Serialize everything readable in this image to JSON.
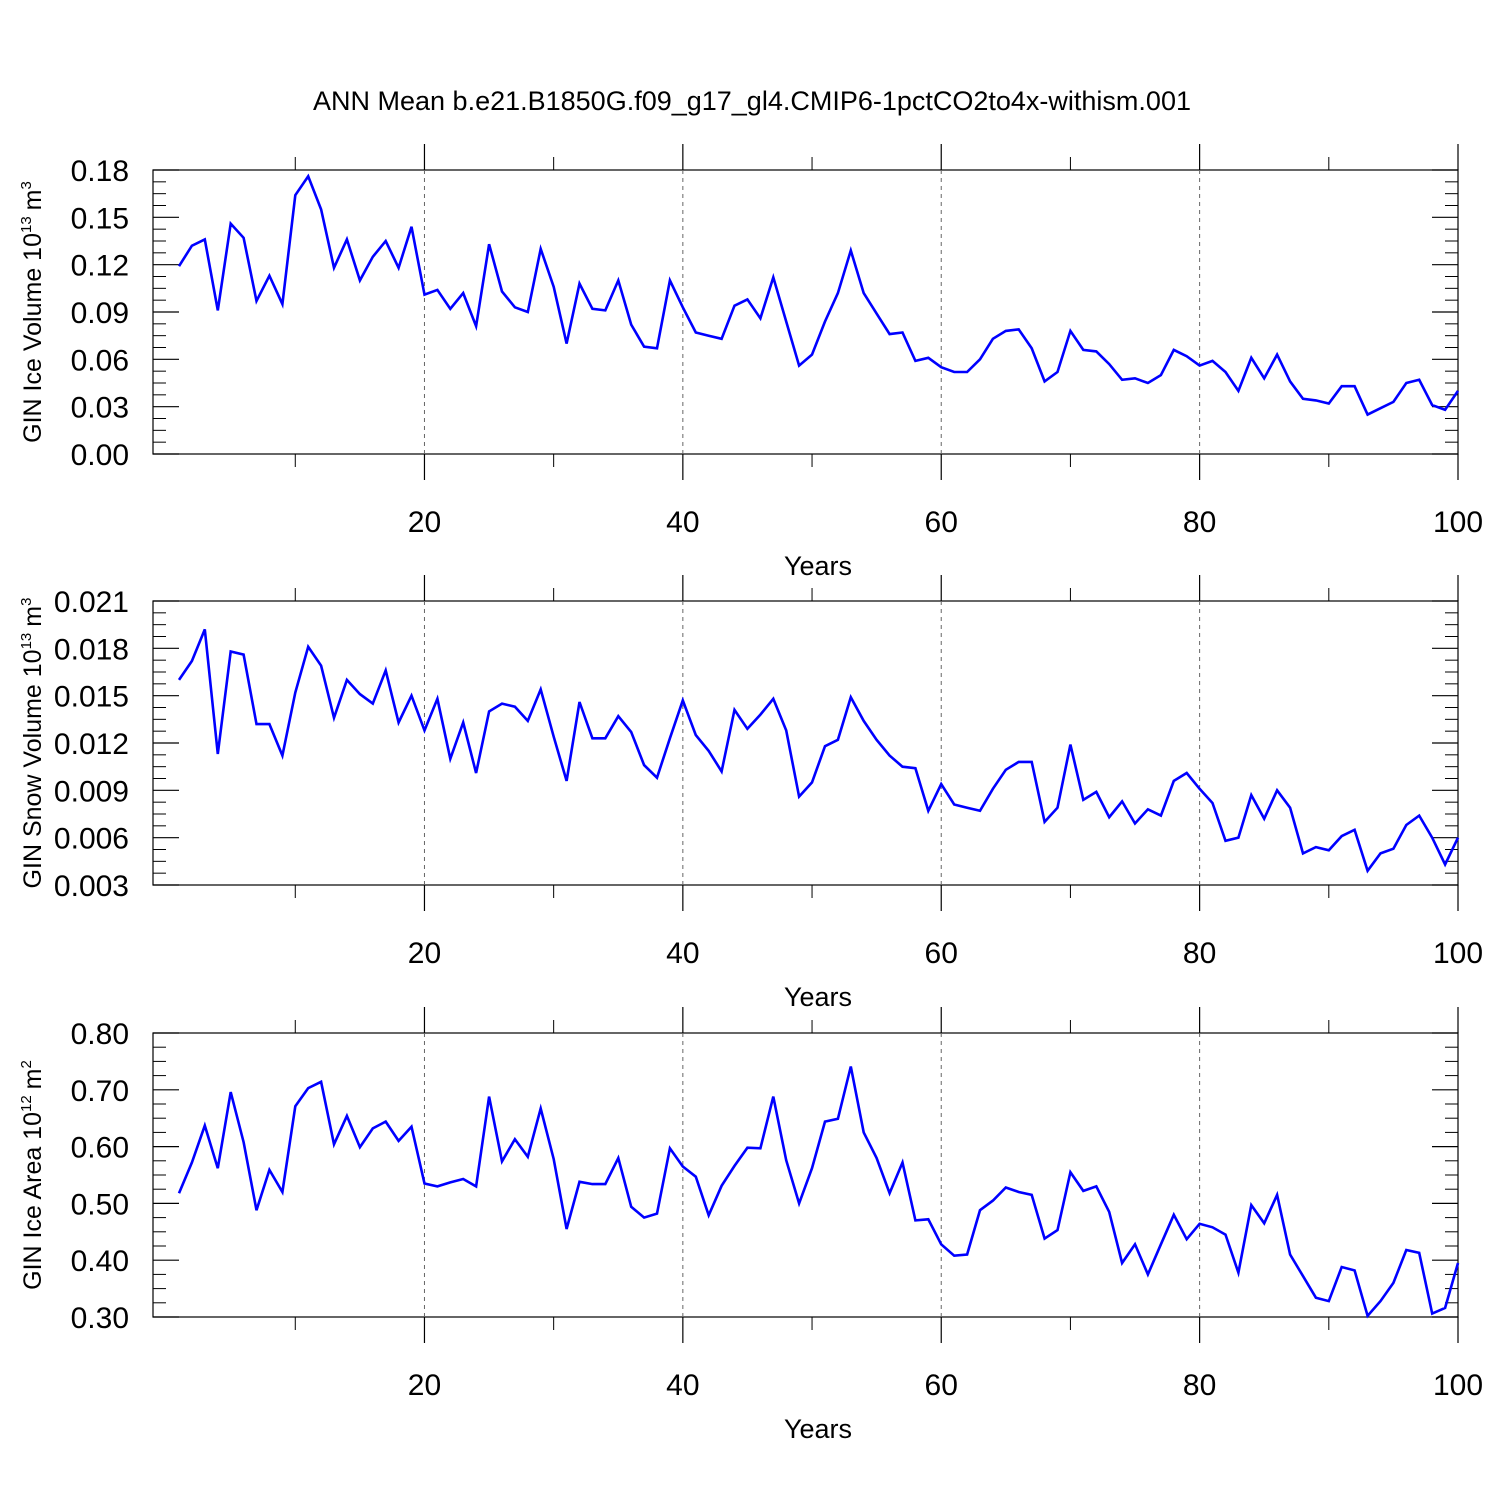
{
  "title": "ANN Mean b.e21.B1850G.f09_g17_gl4.CMIP6-1pctCO2to4x-withism.001",
  "colors": {
    "line": "#0000FF",
    "axis": "#000000",
    "grid": "#666666"
  },
  "chart_data": [
    {
      "type": "line",
      "xlabel": "Years",
      "ylabel": "GIN Ice Volume 10",
      "ylabel_exp": "13",
      "ylabel_unit": "m",
      "ylabel_unit_exp": "3",
      "xlim": [
        1,
        100
      ],
      "ylim": [
        0.0,
        0.18
      ],
      "xticks": [
        "20",
        "40",
        "60",
        "80",
        "100"
      ],
      "yticks": [
        "0.00",
        "0.03",
        "0.06",
        "0.09",
        "0.12",
        "0.15",
        "0.18"
      ],
      "grid_x": true,
      "series": [
        {
          "x": [
            1,
            2,
            3,
            4,
            5,
            6,
            7,
            8,
            9,
            10,
            11,
            12,
            13,
            14,
            15,
            16,
            17,
            18,
            19,
            20,
            21,
            22,
            23,
            24,
            25,
            26,
            27,
            28,
            29,
            30,
            31,
            32,
            33,
            34,
            35,
            36,
            37,
            38,
            39,
            40,
            41,
            42,
            43,
            44,
            45,
            46,
            47,
            48,
            49,
            50,
            51,
            52,
            53,
            54,
            55,
            56,
            57,
            58,
            59,
            60,
            61,
            62,
            63,
            64,
            65,
            66,
            67,
            68,
            69,
            70,
            71,
            72,
            73,
            74,
            75,
            76,
            77,
            78,
            79,
            80,
            81,
            82,
            83,
            84,
            85,
            86,
            87,
            88,
            89,
            90,
            91,
            92,
            93,
            94,
            95,
            96,
            97,
            98,
            99,
            100
          ],
          "values": [
            0.119,
            0.132,
            0.136,
            0.091,
            0.146,
            0.137,
            0.097,
            0.113,
            0.095,
            0.164,
            0.176,
            0.155,
            0.118,
            0.136,
            0.11,
            0.125,
            0.135,
            0.118,
            0.144,
            0.101,
            0.104,
            0.092,
            0.102,
            0.081,
            0.133,
            0.103,
            0.093,
            0.09,
            0.13,
            0.106,
            0.07,
            0.108,
            0.092,
            0.091,
            0.11,
            0.082,
            0.068,
            0.067,
            0.11,
            0.093,
            0.077,
            0.075,
            0.073,
            0.094,
            0.098,
            0.086,
            0.112,
            0.084,
            0.056,
            0.063,
            0.084,
            0.102,
            0.129,
            0.102,
            0.089,
            0.076,
            0.077,
            0.059,
            0.061,
            0.055,
            0.052,
            0.052,
            0.06,
            0.073,
            0.078,
            0.079,
            0.067,
            0.046,
            0.052,
            0.078,
            0.066,
            0.065,
            0.057,
            0.047,
            0.048,
            0.045,
            0.05,
            0.066,
            0.062,
            0.056,
            0.059,
            0.052,
            0.04,
            0.061,
            0.048,
            0.063,
            0.046,
            0.035,
            0.034,
            0.032,
            0.043,
            0.043,
            0.025,
            0.029,
            0.033,
            0.045,
            0.047,
            0.031,
            0.028,
            0.04
          ]
        }
      ]
    },
    {
      "type": "line",
      "xlabel": "Years",
      "ylabel": "GIN Snow Volume 10",
      "ylabel_exp": "13",
      "ylabel_unit": "m",
      "ylabel_unit_exp": "3",
      "xlim": [
        1,
        100
      ],
      "ylim": [
        0.003,
        0.021
      ],
      "xticks": [
        "20",
        "40",
        "60",
        "80",
        "100"
      ],
      "yticks": [
        "0.003",
        "0.006",
        "0.009",
        "0.012",
        "0.015",
        "0.018",
        "0.021"
      ],
      "grid_x": true,
      "series": [
        {
          "x": [
            1,
            2,
            3,
            4,
            5,
            6,
            7,
            8,
            9,
            10,
            11,
            12,
            13,
            14,
            15,
            16,
            17,
            18,
            19,
            20,
            21,
            22,
            23,
            24,
            25,
            26,
            27,
            28,
            29,
            30,
            31,
            32,
            33,
            34,
            35,
            36,
            37,
            38,
            39,
            40,
            41,
            42,
            43,
            44,
            45,
            46,
            47,
            48,
            49,
            50,
            51,
            52,
            53,
            54,
            55,
            56,
            57,
            58,
            59,
            60,
            61,
            62,
            63,
            64,
            65,
            66,
            67,
            68,
            69,
            70,
            71,
            72,
            73,
            74,
            75,
            76,
            77,
            78,
            79,
            80,
            81,
            82,
            83,
            84,
            85,
            86,
            87,
            88,
            89,
            90,
            91,
            92,
            93,
            94,
            95,
            96,
            97,
            98,
            99,
            100
          ],
          "values": [
            0.016,
            0.0172,
            0.0192,
            0.0113,
            0.0178,
            0.0176,
            0.0132,
            0.0132,
            0.0112,
            0.0152,
            0.0181,
            0.0169,
            0.0136,
            0.016,
            0.0151,
            0.0145,
            0.0166,
            0.0133,
            0.015,
            0.0128,
            0.0148,
            0.011,
            0.0133,
            0.0101,
            0.014,
            0.0145,
            0.0143,
            0.0134,
            0.0154,
            0.0124,
            0.0096,
            0.0146,
            0.0123,
            0.0123,
            0.0137,
            0.0127,
            0.0106,
            0.0098,
            0.0123,
            0.0147,
            0.0125,
            0.0115,
            0.0102,
            0.0141,
            0.0129,
            0.0138,
            0.0148,
            0.0128,
            0.0086,
            0.0095,
            0.0118,
            0.0122,
            0.0149,
            0.0134,
            0.0122,
            0.0112,
            0.0105,
            0.0104,
            0.0077,
            0.0094,
            0.0081,
            0.0079,
            0.0077,
            0.0091,
            0.0103,
            0.0108,
            0.0108,
            0.007,
            0.0079,
            0.0119,
            0.0084,
            0.0089,
            0.0073,
            0.0083,
            0.0069,
            0.0078,
            0.0074,
            0.0096,
            0.0101,
            0.0091,
            0.0082,
            0.0058,
            0.006,
            0.0087,
            0.0072,
            0.009,
            0.0079,
            0.005,
            0.0054,
            0.0052,
            0.0061,
            0.0065,
            0.0039,
            0.005,
            0.0053,
            0.0068,
            0.0074,
            0.006,
            0.0043,
            0.006
          ]
        }
      ]
    },
    {
      "type": "line",
      "xlabel": "Years",
      "ylabel": "GIN Ice Area 10",
      "ylabel_exp": "12",
      "ylabel_unit": "m",
      "ylabel_unit_exp": "2",
      "xlim": [
        1,
        100
      ],
      "ylim": [
        0.3,
        0.8
      ],
      "xticks": [
        "20",
        "40",
        "60",
        "80",
        "100"
      ],
      "yticks": [
        "0.30",
        "0.40",
        "0.50",
        "0.60",
        "0.70",
        "0.80"
      ],
      "grid_x": true,
      "series": [
        {
          "x": [
            1,
            2,
            3,
            4,
            5,
            6,
            7,
            8,
            9,
            10,
            11,
            12,
            13,
            14,
            15,
            16,
            17,
            18,
            19,
            20,
            21,
            22,
            23,
            24,
            25,
            26,
            27,
            28,
            29,
            30,
            31,
            32,
            33,
            34,
            35,
            36,
            37,
            38,
            39,
            40,
            41,
            42,
            43,
            44,
            45,
            46,
            47,
            48,
            49,
            50,
            51,
            52,
            53,
            54,
            55,
            56,
            57,
            58,
            59,
            60,
            61,
            62,
            63,
            64,
            65,
            66,
            67,
            68,
            69,
            70,
            71,
            72,
            73,
            74,
            75,
            76,
            77,
            78,
            79,
            80,
            81,
            82,
            83,
            84,
            85,
            86,
            87,
            88,
            89,
            90,
            91,
            92,
            93,
            94,
            95,
            96,
            97,
            98,
            99,
            100
          ],
          "values": [
            0.518,
            0.572,
            0.637,
            0.562,
            0.696,
            0.608,
            0.488,
            0.559,
            0.52,
            0.671,
            0.703,
            0.714,
            0.604,
            0.654,
            0.599,
            0.632,
            0.644,
            0.61,
            0.635,
            0.535,
            0.53,
            0.537,
            0.543,
            0.53,
            0.688,
            0.574,
            0.613,
            0.582,
            0.667,
            0.578,
            0.455,
            0.538,
            0.534,
            0.534,
            0.58,
            0.494,
            0.475,
            0.482,
            0.597,
            0.565,
            0.547,
            0.479,
            0.531,
            0.566,
            0.598,
            0.597,
            0.688,
            0.576,
            0.5,
            0.562,
            0.644,
            0.649,
            0.741,
            0.625,
            0.58,
            0.518,
            0.572,
            0.47,
            0.472,
            0.428,
            0.408,
            0.41,
            0.488,
            0.505,
            0.528,
            0.52,
            0.515,
            0.438,
            0.453,
            0.555,
            0.522,
            0.53,
            0.485,
            0.395,
            0.428,
            0.375,
            0.428,
            0.48,
            0.437,
            0.464,
            0.458,
            0.445,
            0.378,
            0.497,
            0.465,
            0.515,
            0.41,
            0.372,
            0.334,
            0.328,
            0.388,
            0.382,
            0.302,
            0.328,
            0.36,
            0.418,
            0.413,
            0.306,
            0.316,
            0.395
          ]
        }
      ]
    }
  ]
}
